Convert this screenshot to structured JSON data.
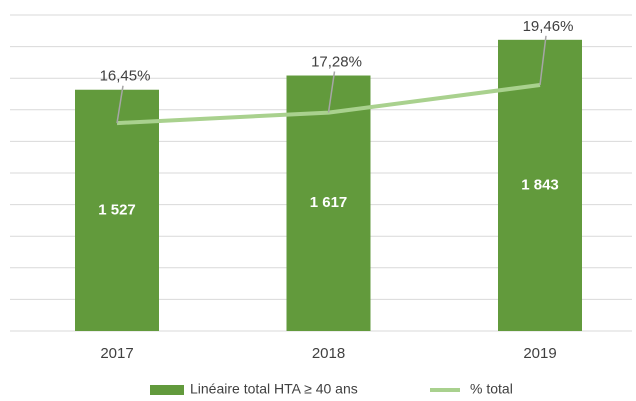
{
  "chart_data": {
    "type": "bar_line",
    "categories": [
      "2017",
      "2018",
      "2019"
    ],
    "series": [
      {
        "name": "Linéaire total HTA ≥ 40 ans",
        "type": "bar",
        "color": "#629a3c",
        "values": [
          1527,
          1617,
          1843
        ],
        "value_labels": [
          "1 527",
          "1 617",
          "1 843"
        ]
      },
      {
        "name": "% total",
        "type": "line",
        "axis": "y2",
        "color": "#a9d18e",
        "values": [
          16.45,
          17.28,
          19.46
        ],
        "value_labels": [
          "16,45%",
          "17,28%",
          "19,46%"
        ]
      }
    ],
    "ylim": [
      0,
      2000
    ],
    "yticks": [
      0,
      200,
      400,
      600,
      800,
      1000,
      1200,
      1400,
      1600,
      1800,
      2000
    ],
    "y2lim": [
      0,
      25
    ],
    "grid": true,
    "legend": "bottom"
  }
}
